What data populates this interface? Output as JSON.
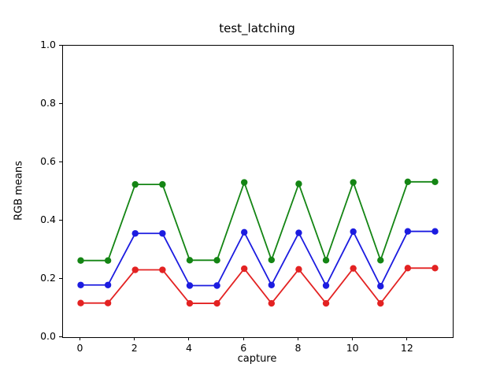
{
  "chart_data": {
    "type": "line",
    "title": "test_latching",
    "xlabel": "capture",
    "ylabel": "RGB means",
    "x": [
      0,
      1,
      2,
      3,
      4,
      5,
      6,
      7,
      8,
      9,
      10,
      11,
      12,
      13
    ],
    "series": [
      {
        "name": "green",
        "color": "#148514",
        "values": [
          0.263,
          0.263,
          0.524,
          0.524,
          0.264,
          0.264,
          0.531,
          0.265,
          0.526,
          0.264,
          0.531,
          0.264,
          0.533,
          0.533
        ]
      },
      {
        "name": "blue",
        "color": "#1c1ce0",
        "values": [
          0.179,
          0.179,
          0.356,
          0.356,
          0.177,
          0.177,
          0.36,
          0.179,
          0.358,
          0.177,
          0.362,
          0.175,
          0.363,
          0.363
        ]
      },
      {
        "name": "red",
        "color": "#e32222",
        "values": [
          0.117,
          0.117,
          0.231,
          0.231,
          0.116,
          0.116,
          0.235,
          0.116,
          0.233,
          0.116,
          0.236,
          0.116,
          0.237,
          0.237
        ]
      }
    ],
    "xlim": [
      -0.65,
      13.65
    ],
    "ylim": [
      0.0,
      1.0
    ],
    "xticks": [
      0,
      2,
      4,
      6,
      8,
      10,
      12
    ],
    "yticks": [
      "0.0",
      "0.2",
      "0.4",
      "0.6",
      "0.8",
      "1.0"
    ],
    "grid": false,
    "legend": null,
    "marker": "circle",
    "line_width": 1.8,
    "marker_radius": 4.2
  }
}
